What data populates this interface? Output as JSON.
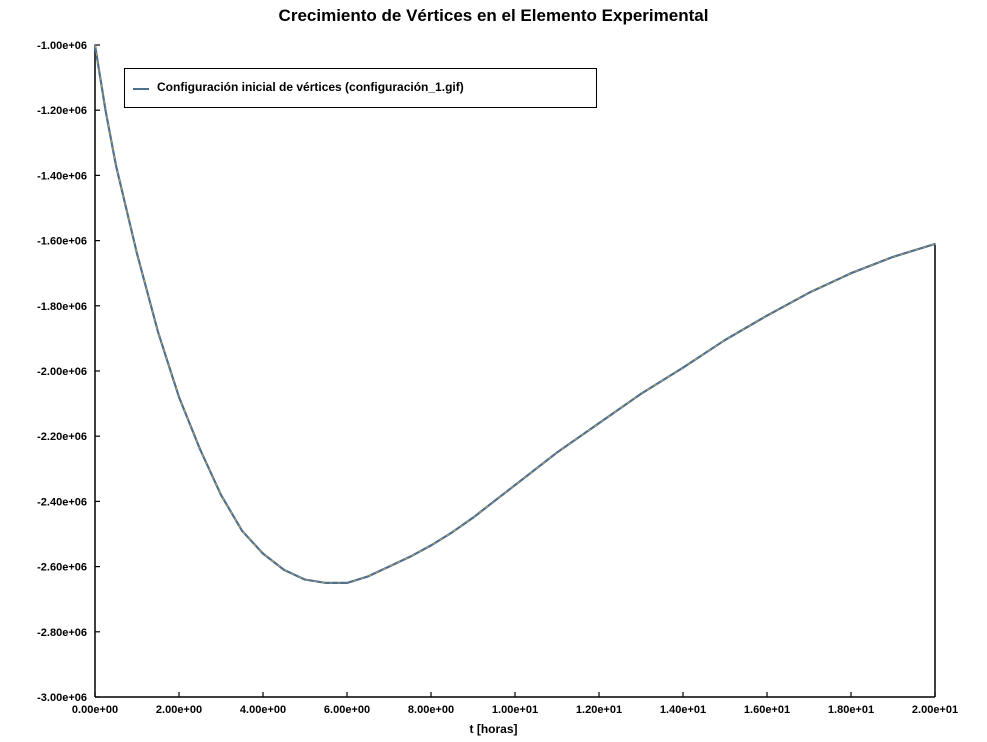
{
  "chart_data": {
    "type": "line",
    "title": "Crecimiento de Vértices en el Elemento Experimental",
    "xlabel": "t [horas]",
    "ylabel": "",
    "x_ticks": [
      "0.00e+00",
      "2.00e+00",
      "4.00e+00",
      "6.00e+00",
      "8.00e+00",
      "1.00e+01",
      "1.20e+01",
      "1.40e+01",
      "1.60e+01",
      "1.80e+01",
      "2.00e+01"
    ],
    "y_ticks": [
      "-3.00e+06",
      "-2.80e+06",
      "-2.60e+06",
      "-2.40e+06",
      "-2.20e+06",
      "-2.00e+06",
      "-1.80e+06",
      "-1.60e+06",
      "-1.40e+06",
      "-1.20e+06",
      "-1.00e+06"
    ],
    "xlim": [
      0,
      20
    ],
    "ylim": [
      -3000000,
      -1000000
    ],
    "grid": false,
    "legend_position": "top-left",
    "series": [
      {
        "name": "Configuración inicial de vértices (configuración_1.gif)",
        "color": "#4f6f8f",
        "x": [
          0,
          0.25,
          0.5,
          1,
          1.5,
          2,
          2.5,
          3,
          3.5,
          4,
          4.5,
          5,
          5.5,
          6,
          6.5,
          7,
          7.5,
          8,
          8.5,
          9,
          9.5,
          10,
          11,
          12,
          13,
          14,
          15,
          16,
          17,
          18,
          19,
          20
        ],
        "y": [
          -1000000,
          -1200000,
          -1370000,
          -1640000,
          -1880000,
          -2080000,
          -2240000,
          -2380000,
          -2490000,
          -2560000,
          -2610000,
          -2640000,
          -2650000,
          -2650000,
          -2630000,
          -2600000,
          -2570000,
          -2535000,
          -2495000,
          -2450000,
          -2400000,
          -2350000,
          -2250000,
          -2160000,
          -2070000,
          -1990000,
          -1905000,
          -1830000,
          -1760000,
          -1700000,
          -1650000,
          -1610000
        ]
      }
    ]
  }
}
